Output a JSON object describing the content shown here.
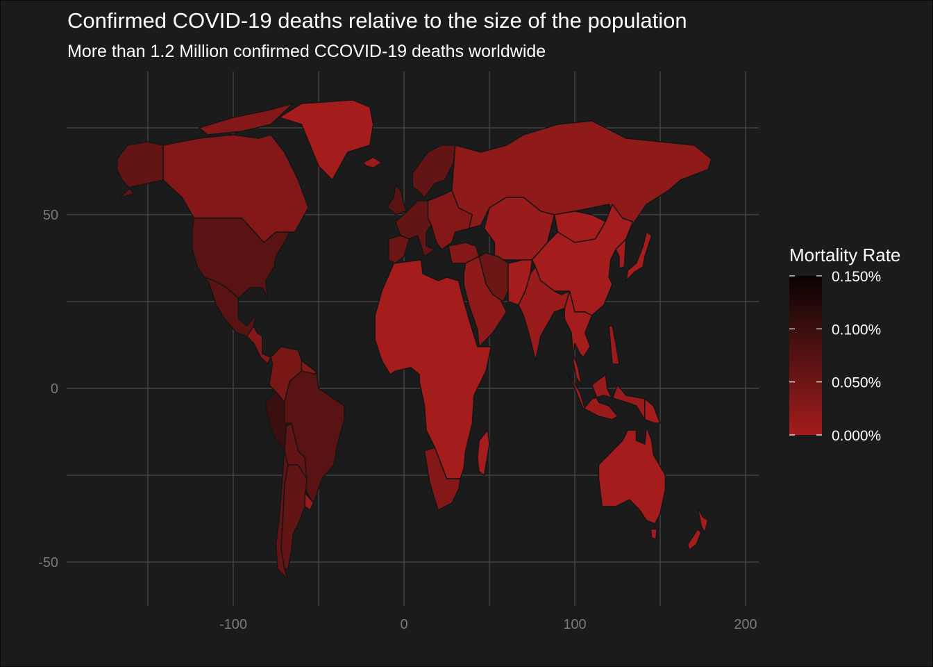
{
  "title": "Confirmed COVID-19 deaths relative to the size of the population",
  "subtitle": "More than 1.2 Million confirmed CCOVID-19 deaths worldwide",
  "colors": {
    "background": "#1b1b1b",
    "grid": "#4a4a4a",
    "border": "#151515",
    "low": "#a51c1c",
    "high": "#0a0202"
  },
  "chart_data": {
    "type": "choropleth",
    "x_axis": {
      "ticks": [
        -100,
        0,
        100,
        200
      ],
      "range": [
        -185,
        210
      ]
    },
    "y_axis": {
      "ticks": [
        -50,
        0,
        50
      ],
      "range": [
        -62,
        92
      ]
    },
    "legend": {
      "title": "Mortality Rate",
      "position": "right",
      "ticks": [
        "0.150%",
        "0.100%",
        "0.050%",
        "0.000%"
      ],
      "tick_values": [
        0.15,
        0.1,
        0.05,
        0.0
      ],
      "range": [
        0.0,
        0.15
      ]
    },
    "regions": [
      {
        "name": "Greenland",
        "rate": 0.0
      },
      {
        "name": "Alaska",
        "rate": 0.06
      },
      {
        "name": "Canada",
        "rate": 0.03
      },
      {
        "name": "United States",
        "rate": 0.07
      },
      {
        "name": "Mexico",
        "rate": 0.07
      },
      {
        "name": "Central America",
        "rate": 0.03
      },
      {
        "name": "Colombia/Venezuela",
        "rate": 0.04
      },
      {
        "name": "Peru",
        "rate": 0.1
      },
      {
        "name": "Brazil",
        "rate": 0.07
      },
      {
        "name": "Argentina",
        "rate": 0.06
      },
      {
        "name": "Chile",
        "rate": 0.06
      },
      {
        "name": "Iceland/Scandinavia",
        "rate": 0.05
      },
      {
        "name": "Western Europe",
        "rate": 0.06
      },
      {
        "name": "Spain",
        "rate": 0.05
      },
      {
        "name": "Eastern Europe",
        "rate": 0.03
      },
      {
        "name": "Russia",
        "rate": 0.02
      },
      {
        "name": "Kazakhstan/Central Asia",
        "rate": 0.01
      },
      {
        "name": "Middle East",
        "rate": 0.02
      },
      {
        "name": "Iran",
        "rate": 0.05
      },
      {
        "name": "Mongolia",
        "rate": 0.0
      },
      {
        "name": "China",
        "rate": 0.0
      },
      {
        "name": "India",
        "rate": 0.01
      },
      {
        "name": "Southeast Asia",
        "rate": 0.0
      },
      {
        "name": "Indonesia",
        "rate": 0.01
      },
      {
        "name": "Japan",
        "rate": 0.0
      },
      {
        "name": "Africa",
        "rate": 0.0
      },
      {
        "name": "South Africa",
        "rate": 0.03
      },
      {
        "name": "Madagascar",
        "rate": 0.0
      },
      {
        "name": "Australia",
        "rate": 0.0
      },
      {
        "name": "New Zealand",
        "rate": 0.0
      }
    ]
  }
}
